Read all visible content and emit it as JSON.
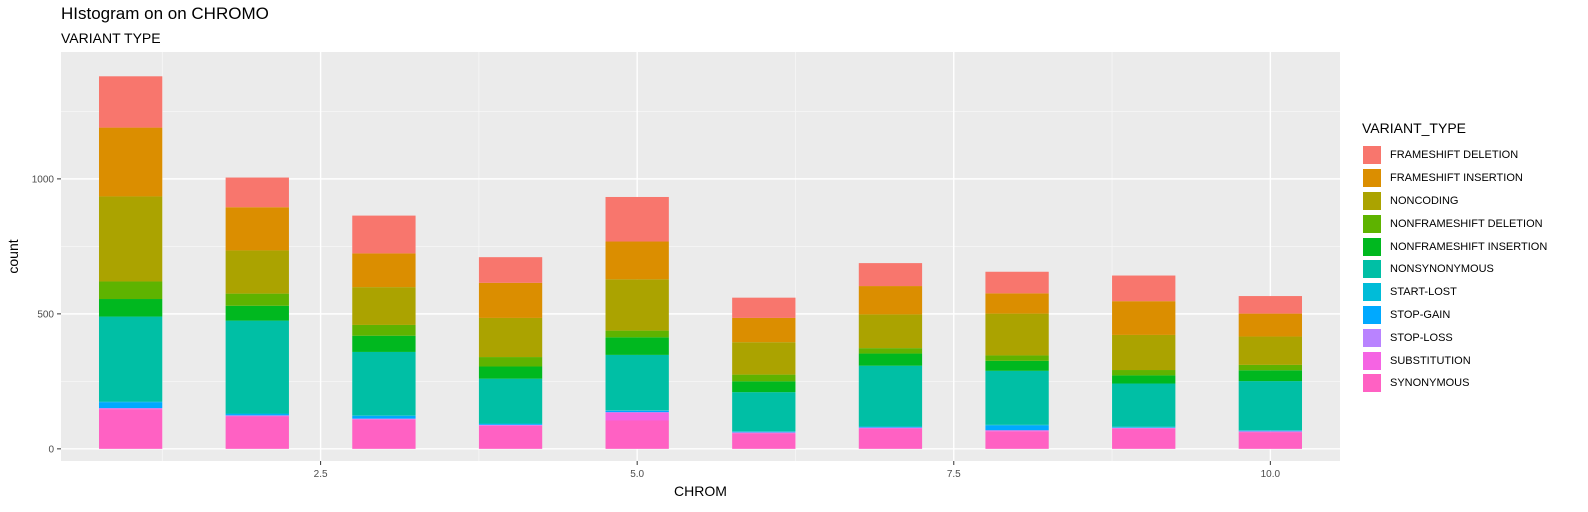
{
  "title": "HIstogram on on CHROMO",
  "subtitle": "VARIANT TYPE",
  "chart_data": {
    "type": "bar",
    "stacked": true,
    "xlabel": "CHROM",
    "ylabel": "count",
    "x": [
      1,
      2,
      3,
      4,
      5,
      6,
      7,
      8,
      9,
      10
    ],
    "xlim": [
      0.45,
      10.55
    ],
    "ylim": [
      -45,
      1470
    ],
    "xticks": [
      2.5,
      5.0,
      7.5,
      10.0
    ],
    "xtick_labels": [
      "2.5",
      "5.0",
      "7.5",
      "10.0"
    ],
    "yticks": [
      0,
      500,
      1000
    ],
    "ytick_labels": [
      "0",
      "500",
      "1000"
    ],
    "grid": true,
    "legend_title": "VARIANT_TYPE",
    "legend_position": "right",
    "series": [
      {
        "name": "SYNONYMOUS",
        "color": "#FF61C3",
        "values": [
          147,
          120,
          108,
          85,
          105,
          58,
          75,
          65,
          75,
          62
        ]
      },
      {
        "name": "SUBSTITUTION",
        "color": "#F564E3",
        "values": [
          3,
          3,
          3,
          3,
          30,
          2,
          3,
          3,
          2,
          2
        ]
      },
      {
        "name": "STOP-LOSS",
        "color": "#B983FF",
        "values": [
          1,
          1,
          1,
          1,
          1,
          1,
          1,
          1,
          1,
          1
        ]
      },
      {
        "name": "STOP-GAIN",
        "color": "#00A9FF",
        "values": [
          22,
          5,
          10,
          3,
          5,
          2,
          2,
          18,
          2,
          2
        ]
      },
      {
        "name": "START-LOST",
        "color": "#00BCD8",
        "values": [
          2,
          2,
          2,
          2,
          2,
          2,
          2,
          2,
          2,
          2
        ]
      },
      {
        "name": "NONSYNONYMOUS",
        "color": "#00BFA5",
        "values": [
          315,
          344,
          235,
          166,
          205,
          145,
          225,
          200,
          160,
          182
        ]
      },
      {
        "name": "NONFRAMESHIFT INSERTION",
        "color": "#00B81F",
        "values": [
          65,
          55,
          60,
          45,
          65,
          40,
          45,
          37,
          30,
          40
        ]
      },
      {
        "name": "NONFRAMESHIFT DELETION",
        "color": "#5EB300",
        "values": [
          65,
          45,
          40,
          35,
          25,
          25,
          20,
          20,
          20,
          20
        ]
      },
      {
        "name": "NONCODING",
        "color": "#ABA300",
        "values": [
          315,
          160,
          140,
          145,
          190,
          120,
          125,
          155,
          130,
          105
        ]
      },
      {
        "name": "FRAMESHIFT INSERTION",
        "color": "#DB8E00",
        "values": [
          255,
          160,
          125,
          130,
          140,
          90,
          105,
          75,
          125,
          85
        ]
      },
      {
        "name": "FRAMESHIFT DELETION",
        "color": "#F8766D",
        "values": [
          190,
          110,
          140,
          95,
          165,
          75,
          85,
          80,
          95,
          65
        ]
      }
    ]
  }
}
